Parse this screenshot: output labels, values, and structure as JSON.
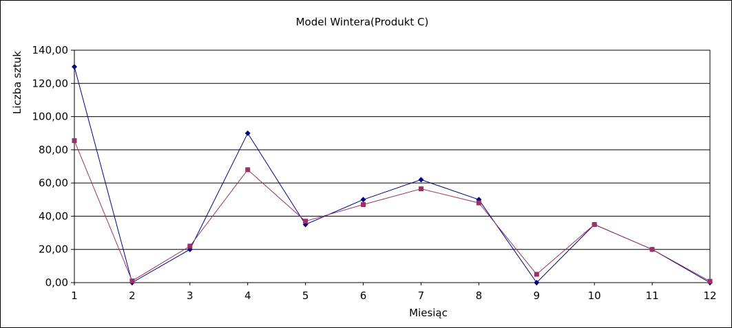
{
  "chart_data": {
    "type": "line",
    "title": "Model Wintera(Produkt C)",
    "xlabel": "Miesiąc",
    "ylabel": "Liczba sztuk",
    "categories": [
      "1",
      "2",
      "3",
      "4",
      "5",
      "6",
      "7",
      "8",
      "9",
      "10",
      "11",
      "12"
    ],
    "ylim": [
      0,
      140
    ],
    "yticks": [
      "0,00",
      "20,00",
      "40,00",
      "60,00",
      "80,00",
      "100,00",
      "120,00",
      "140,00"
    ],
    "grid": true,
    "legend": "none",
    "series": [
      {
        "values": [
          130,
          0,
          20,
          90,
          35,
          50,
          62,
          50,
          0,
          35,
          20,
          0
        ],
        "color": "#000080",
        "marker": "diamond"
      },
      {
        "values": [
          85.5,
          1,
          22,
          68,
          37,
          47,
          56.5,
          48,
          5,
          35,
          20,
          0.8
        ],
        "color": "#993366",
        "marker": "square"
      }
    ]
  }
}
